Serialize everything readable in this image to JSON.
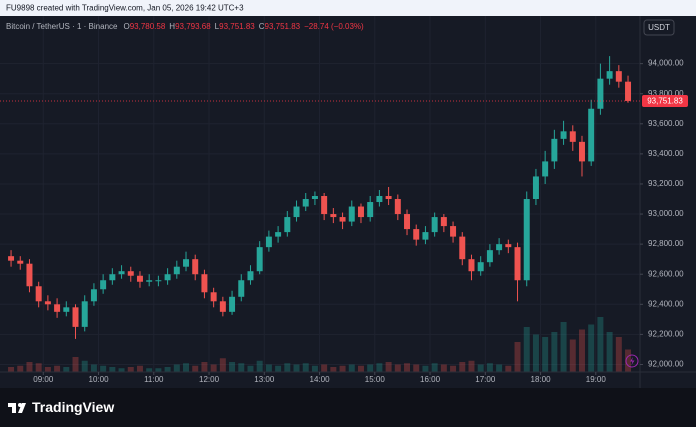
{
  "header": {
    "text": "FU9898 created with TradingView.com, Jan 05, 2026 19:42 UTC+3"
  },
  "logo": {
    "text": "TradingView"
  },
  "chart_data": {
    "type": "candlestick",
    "legend": {
      "symbol": "Bitcoin / TetherUS · 1 · Binance",
      "items": [
        {
          "key": "O",
          "value": "93,780.58"
        },
        {
          "key": "H",
          "value": "93,793.68"
        },
        {
          "key": "L",
          "value": "93,751.83"
        },
        {
          "key": "C",
          "value": "93,751.83"
        }
      ],
      "change": "−28.74 (−0.03%)"
    },
    "currency": "USDT",
    "up_color": "#26a69a",
    "down_color": "#ef5350",
    "x": [
      505,
      515,
      525,
      535,
      545,
      555,
      565,
      575,
      585,
      595,
      605,
      615,
      625,
      635,
      645,
      655,
      665,
      675,
      685,
      695,
      705,
      715,
      725,
      735,
      745,
      755,
      765,
      775,
      785,
      795,
      805,
      815,
      825,
      835,
      845,
      855,
      865,
      875,
      885,
      895,
      905,
      915,
      925,
      935,
      945,
      955,
      965,
      975,
      985,
      995,
      1005,
      1015,
      1025,
      1035,
      1045,
      1055,
      1065,
      1075,
      1085,
      1095,
      1105,
      1115,
      1125,
      1135,
      1145,
      1155,
      1165,
      1175
    ],
    "ohlc": [
      [
        92720,
        92760,
        92650,
        92690
      ],
      [
        92690,
        92720,
        92630,
        92670
      ],
      [
        92670,
        92700,
        92480,
        92520
      ],
      [
        92520,
        92550,
        92380,
        92420
      ],
      [
        92420,
        92460,
        92360,
        92400
      ],
      [
        92400,
        92440,
        92310,
        92350
      ],
      [
        92350,
        92420,
        92320,
        92380
      ],
      [
        92380,
        92400,
        92170,
        92250
      ],
      [
        92250,
        92460,
        92220,
        92420
      ],
      [
        92420,
        92540,
        92390,
        92500
      ],
      [
        92500,
        92600,
        92470,
        92560
      ],
      [
        92560,
        92640,
        92530,
        92600
      ],
      [
        92600,
        92660,
        92570,
        92620
      ],
      [
        92620,
        92650,
        92550,
        92590
      ],
      [
        92590,
        92620,
        92510,
        92550
      ],
      [
        92550,
        92600,
        92520,
        92560
      ],
      [
        92560,
        92590,
        92520,
        92560
      ],
      [
        92560,
        92640,
        92530,
        92600
      ],
      [
        92600,
        92690,
        92570,
        92650
      ],
      [
        92650,
        92750,
        92620,
        92700
      ],
      [
        92700,
        92730,
        92560,
        92600
      ],
      [
        92600,
        92630,
        92440,
        92480
      ],
      [
        92480,
        92510,
        92380,
        92420
      ],
      [
        92420,
        92450,
        92320,
        92350
      ],
      [
        92350,
        92490,
        92330,
        92450
      ],
      [
        92450,
        92600,
        92420,
        92560
      ],
      [
        92560,
        92660,
        92530,
        92620
      ],
      [
        92620,
        92820,
        92600,
        92780
      ],
      [
        92780,
        92890,
        92750,
        92850
      ],
      [
        92850,
        92920,
        92810,
        92880
      ],
      [
        92880,
        93020,
        92850,
        92980
      ],
      [
        92980,
        93090,
        92950,
        93050
      ],
      [
        93050,
        93140,
        93020,
        93100
      ],
      [
        93100,
        93150,
        93060,
        93120
      ],
      [
        93120,
        93140,
        92960,
        93000
      ],
      [
        93000,
        93040,
        92940,
        92980
      ],
      [
        92980,
        93010,
        92900,
        92950
      ],
      [
        92950,
        93090,
        92920,
        93050
      ],
      [
        93050,
        93070,
        92940,
        92980
      ],
      [
        92980,
        93120,
        92950,
        93080
      ],
      [
        93080,
        93160,
        93050,
        93120
      ],
      [
        93120,
        93180,
        93060,
        93100
      ],
      [
        93100,
        93130,
        92960,
        93000
      ],
      [
        93000,
        93030,
        92860,
        92900
      ],
      [
        92900,
        92930,
        92790,
        92830
      ],
      [
        92830,
        92920,
        92800,
        92880
      ],
      [
        92880,
        93010,
        92850,
        92980
      ],
      [
        92980,
        93000,
        92880,
        92920
      ],
      [
        92920,
        92950,
        92810,
        92850
      ],
      [
        92850,
        92880,
        92660,
        92700
      ],
      [
        92700,
        92730,
        92560,
        92620
      ],
      [
        92620,
        92720,
        92590,
        92680
      ],
      [
        92680,
        92800,
        92650,
        92760
      ],
      [
        92760,
        92840,
        92730,
        92800
      ],
      [
        92800,
        92830,
        92740,
        92780
      ],
      [
        92780,
        92810,
        92420,
        92560
      ],
      [
        92560,
        93150,
        92520,
        93100
      ],
      [
        93100,
        93300,
        93060,
        93250
      ],
      [
        93250,
        93420,
        93200,
        93350
      ],
      [
        93350,
        93560,
        93300,
        93500
      ],
      [
        93500,
        93620,
        93460,
        93550
      ],
      [
        93550,
        93590,
        93420,
        93480
      ],
      [
        93480,
        93520,
        93250,
        93350
      ],
      [
        93350,
        93760,
        93320,
        93700
      ],
      [
        93700,
        94000,
        93660,
        93900
      ],
      [
        93900,
        94050,
        93860,
        93950
      ],
      [
        93950,
        93990,
        93840,
        93880
      ],
      [
        93880,
        93920,
        93740,
        93751.83
      ]
    ],
    "volume": [
      20,
      25,
      40,
      35,
      20,
      25,
      20,
      60,
      45,
      30,
      25,
      20,
      15,
      20,
      25,
      15,
      15,
      20,
      30,
      35,
      25,
      40,
      30,
      55,
      40,
      35,
      25,
      45,
      30,
      25,
      35,
      30,
      35,
      25,
      30,
      20,
      25,
      30,
      25,
      30,
      35,
      40,
      30,
      35,
      30,
      25,
      35,
      30,
      25,
      40,
      45,
      30,
      35,
      30,
      25,
      120,
      180,
      150,
      140,
      160,
      200,
      130,
      170,
      190,
      220,
      160,
      140,
      90
    ],
    "volume_lim": [
      0,
      400
    ],
    "last_price": {
      "value": 93751.83,
      "label": "93,751.83"
    },
    "xlim": [
      493,
      1188
    ],
    "xticks": [
      {
        "value": 540,
        "label": "09:00"
      },
      {
        "value": 600,
        "label": "10:00"
      },
      {
        "value": 660,
        "label": "11:00"
      },
      {
        "value": 720,
        "label": "12:00"
      },
      {
        "value": 780,
        "label": "13:00"
      },
      {
        "value": 840,
        "label": "14:00"
      },
      {
        "value": 900,
        "label": "15:00"
      },
      {
        "value": 960,
        "label": "16:00"
      },
      {
        "value": 1020,
        "label": "17:00"
      },
      {
        "value": 1080,
        "label": "18:00"
      },
      {
        "value": 1140,
        "label": "19:00"
      }
    ],
    "ylim": [
      91950,
      94310
    ],
    "yticks": [
      {
        "value": 92000,
        "label": "92,000.00"
      },
      {
        "value": 92200,
        "label": "92,200.00"
      },
      {
        "value": 92400,
        "label": "92,400.00"
      },
      {
        "value": 92600,
        "label": "92,600.00"
      },
      {
        "value": 92800,
        "label": "92,800.00"
      },
      {
        "value": 93000,
        "label": "93,000.00"
      },
      {
        "value": 93200,
        "label": "93,200.00"
      },
      {
        "value": 93400,
        "label": "93,400.00"
      },
      {
        "value": 93600,
        "label": "93,600.00"
      },
      {
        "value": 93800,
        "label": "93,800.00"
      },
      {
        "value": 94000,
        "label": "94,000.00"
      }
    ],
    "grid": true
  }
}
